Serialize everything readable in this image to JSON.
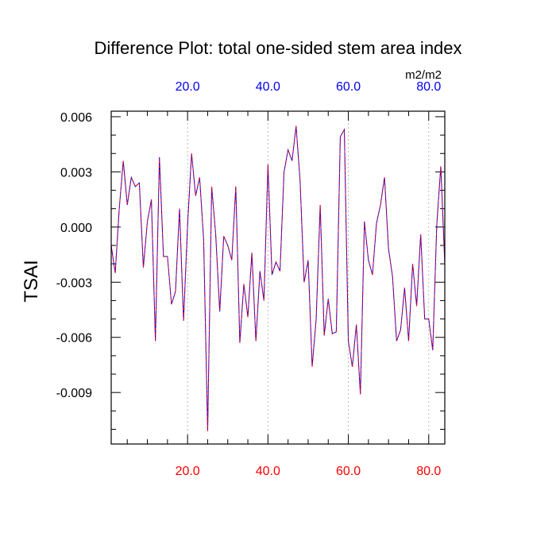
{
  "chart_data": {
    "type": "line",
    "title": "Difference Plot: total one-sided stem area index",
    "ylabel": "TSAI",
    "units": "m2/m2",
    "xlim": [
      1,
      84
    ],
    "ylim": [
      -0.0118,
      0.0063
    ],
    "y_ticks": [
      "0.006",
      "0.003",
      "0.000",
      "-0.003",
      "-0.006",
      "-0.009"
    ],
    "y_tick_values": [
      0.006,
      0.003,
      0.0,
      -0.003,
      -0.006,
      -0.009
    ],
    "x_ticks_bottom": [
      "20.0",
      "40.0",
      "60.0",
      "80.0"
    ],
    "x_ticks_top": [
      "20.0",
      "40.0",
      "60.0",
      "80.0"
    ],
    "x_tick_values": [
      20,
      40,
      60,
      80
    ],
    "bottom_axis_color": "#ff0000",
    "top_axis_color": "#0000ff",
    "series": [
      {
        "name": "line-solid",
        "color": "#0000ff",
        "dashed": false
      },
      {
        "name": "line-dashed",
        "color": "#ff0000",
        "dashed": true
      }
    ],
    "x": [
      1,
      2,
      3,
      4,
      5,
      6,
      7,
      8,
      9,
      10,
      11,
      12,
      13,
      14,
      15,
      16,
      17,
      18,
      19,
      20,
      21,
      22,
      23,
      24,
      25,
      26,
      27,
      28,
      29,
      30,
      31,
      32,
      33,
      34,
      35,
      36,
      37,
      38,
      39,
      40,
      41,
      42,
      43,
      44,
      45,
      46,
      47,
      48,
      49,
      50,
      51,
      52,
      53,
      54,
      55,
      56,
      57,
      58,
      59,
      60,
      61,
      62,
      63,
      64,
      65,
      66,
      67,
      68,
      69,
      70,
      71,
      72,
      73,
      74,
      75,
      76,
      77,
      78,
      79,
      80,
      81,
      82,
      83,
      84
    ],
    "values": [
      -0.001,
      -0.0025,
      0.001,
      0.0036,
      0.0012,
      0.0027,
      0.0022,
      0.0024,
      -0.0022,
      0.0003,
      0.0015,
      -0.0062,
      0.0038,
      -0.0016,
      -0.0016,
      -0.0042,
      -0.0035,
      0.001,
      -0.0051,
      0.0001,
      0.004,
      0.0017,
      0.0027,
      -0.0007,
      -0.0111,
      0.0022,
      -0.0004,
      -0.0046,
      -0.0005,
      -0.001,
      -0.0018,
      0.0022,
      -0.0063,
      -0.0031,
      -0.0049,
      -0.0014,
      -0.0062,
      -0.0024,
      -0.004,
      0.0034,
      -0.0026,
      -0.0019,
      -0.0024,
      0.003,
      0.0042,
      0.0036,
      0.0055,
      0.0025,
      -0.003,
      -0.0018,
      -0.0076,
      -0.005,
      0.0012,
      -0.0059,
      -0.0039,
      -0.0058,
      -0.0057,
      0.0049,
      0.0053,
      -0.0062,
      -0.0076,
      -0.0053,
      -0.0091,
      0.0003,
      -0.0018,
      -0.0026,
      0.0002,
      0.0012,
      0.0027,
      -0.0012,
      -0.0027,
      -0.0062,
      -0.0056,
      -0.0033,
      -0.0062,
      -0.002,
      -0.0043,
      -0.0004,
      -0.005,
      -0.005,
      -0.0067,
      0.0001,
      0.0033,
      -0.002
    ]
  }
}
